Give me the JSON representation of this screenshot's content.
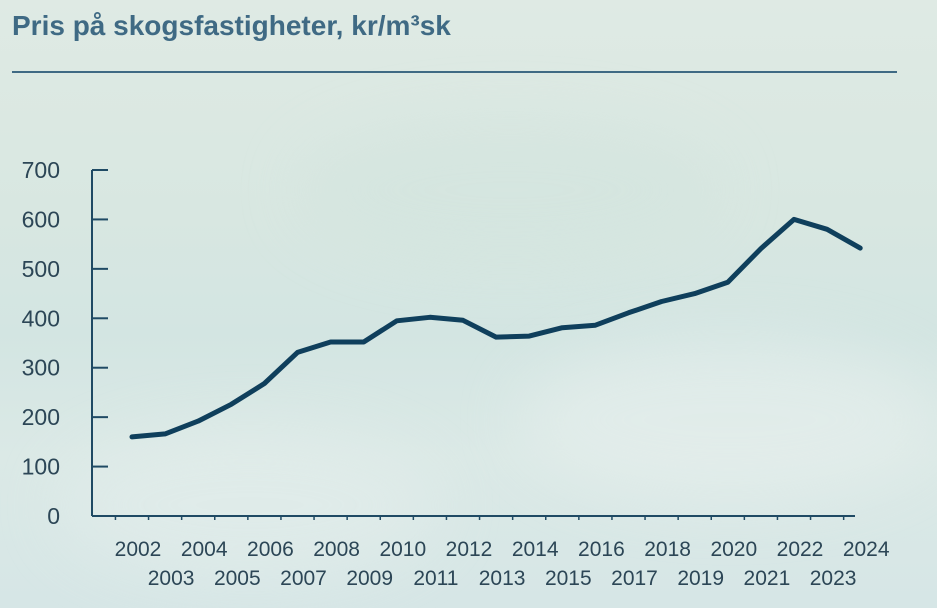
{
  "colors": {
    "title": "#3f6a84",
    "axis": "#1f4a64",
    "line": "#0f3f5c",
    "text": "#2c4656"
  },
  "chart_data": {
    "type": "line",
    "title": "Pris på skogsfastigheter, kr/m³sk",
    "xlabel": "",
    "ylabel": "",
    "ylim": [
      0,
      700
    ],
    "yticks": [
      0,
      100,
      200,
      300,
      400,
      500,
      600,
      700
    ],
    "xlim": [
      2001,
      2024
    ],
    "x": [
      2002,
      2003,
      2004,
      2005,
      2006,
      2007,
      2008,
      2009,
      2010,
      2011,
      2012,
      2013,
      2014,
      2015,
      2016,
      2017,
      2018,
      2019,
      2020,
      2021,
      2022,
      2023,
      2024
    ],
    "x_tick_labels_top": [
      "2002",
      "2004",
      "2006",
      "2008",
      "2010",
      "2012",
      "2014",
      "2016",
      "2018",
      "2020",
      "2022",
      "2024"
    ],
    "x_tick_labels_bottom": [
      "2003",
      "2005",
      "2007",
      "2009",
      "2011",
      "2013",
      "2015",
      "2017",
      "2019",
      "2021",
      "2023"
    ],
    "series": [
      {
        "values": [
          160,
          166,
          192,
          226,
          268,
          331,
          352,
          352,
          395,
          402,
          396,
          362,
          364,
          381,
          386,
          411,
          434,
          450,
          473,
          541,
          600,
          580,
          542
        ]
      }
    ],
    "grid": false,
    "legend": "none"
  }
}
